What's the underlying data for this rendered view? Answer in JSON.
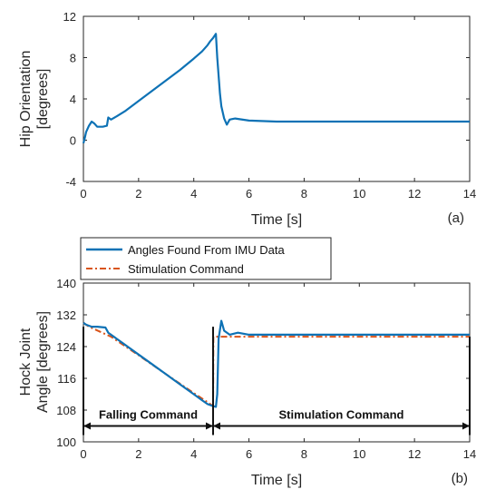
{
  "chart_data": [
    {
      "type": "line",
      "panel_label": "(a)",
      "xlabel": "Time [s]",
      "ylabel_lines": [
        "Hip Orientation",
        "[degrees]"
      ],
      "xlim": [
        0,
        14
      ],
      "ylim": [
        -4,
        12
      ],
      "xticks": [
        0,
        2,
        4,
        6,
        8,
        10,
        12,
        14
      ],
      "yticks": [
        -4,
        0,
        4,
        8,
        12
      ],
      "grid": false,
      "series": [
        {
          "color": "#0e72b5",
          "x": [
            0,
            0.05,
            0.1,
            0.2,
            0.3,
            0.4,
            0.5,
            0.7,
            0.85,
            0.9,
            1.0,
            1.2,
            1.5,
            2.0,
            2.5,
            3.0,
            3.5,
            4.0,
            4.3,
            4.5,
            4.6,
            4.7,
            4.75,
            4.8,
            4.85,
            4.95,
            5.0,
            5.1,
            5.2,
            5.3,
            5.5,
            6.0,
            7.0,
            8.0,
            9.0,
            10.0,
            11.0,
            12.0,
            13.0,
            14.0
          ],
          "y": [
            -0.3,
            0.2,
            0.8,
            1.4,
            1.8,
            1.6,
            1.3,
            1.3,
            1.4,
            2.2,
            2.0,
            2.3,
            2.8,
            3.8,
            4.8,
            5.8,
            6.8,
            7.9,
            8.6,
            9.2,
            9.6,
            9.9,
            10.1,
            10.3,
            8.0,
            4.5,
            3.3,
            2.1,
            1.5,
            2.0,
            2.1,
            1.9,
            1.8,
            1.8,
            1.8,
            1.8,
            1.8,
            1.8,
            1.8,
            1.8
          ]
        }
      ]
    },
    {
      "type": "line",
      "panel_label": "(b)",
      "xlabel": "Time [s]",
      "ylabel_lines": [
        "Hock Joint",
        "Angle [degrees]"
      ],
      "xlim": [
        0,
        14
      ],
      "ylim": [
        100,
        140
      ],
      "xticks": [
        0,
        2,
        4,
        6,
        8,
        10,
        12,
        14
      ],
      "yticks": [
        100,
        108,
        116,
        124,
        132,
        140
      ],
      "ytick_labels": [
        "100",
        "108",
        "116",
        "124",
        "132",
        "140"
      ],
      "grid": false,
      "legend_position": "top-left, above axes",
      "series": [
        {
          "name": "Angles Found From IMU Data",
          "color": "#0e72b5",
          "style": "solid",
          "x": [
            0,
            0.1,
            0.3,
            0.5,
            0.8,
            0.9,
            1.0,
            1.5,
            2.0,
            2.5,
            3.0,
            3.5,
            4.0,
            4.3,
            4.5,
            4.7,
            4.8,
            4.85,
            4.9,
            5.0,
            5.1,
            5.3,
            5.6,
            6.0,
            7.0,
            8.0,
            9.0,
            10.0,
            11.0,
            12.0,
            13.0,
            14.0
          ],
          "y": [
            130,
            129.5,
            129,
            129,
            128.8,
            127.5,
            127.0,
            124.5,
            122.0,
            119.5,
            117.0,
            114.5,
            112.0,
            110.5,
            109.5,
            109.0,
            108.8,
            112,
            126,
            130.5,
            128,
            127,
            127.5,
            127,
            127,
            127,
            127,
            127,
            127,
            127,
            127,
            127
          ]
        },
        {
          "name": "Stimulation Command",
          "color": "#d9541a",
          "style": "dashdot",
          "x": [
            0,
            0.2,
            1.0,
            2.0,
            3.0,
            4.0,
            4.5,
            4.7,
            4.71,
            5.0,
            14.0
          ],
          "y": [
            130,
            129,
            126.5,
            121.8,
            117,
            112.3,
            110,
            109,
            126.5,
            126.5,
            126.5
          ]
        }
      ],
      "annotations": [
        {
          "text": "Falling Command",
          "x_from": 0,
          "x_to": 4.7,
          "y": 104
        },
        {
          "text": "Stimulation Command",
          "x_from": 4.7,
          "x_to": 14,
          "y": 104
        }
      ]
    }
  ]
}
